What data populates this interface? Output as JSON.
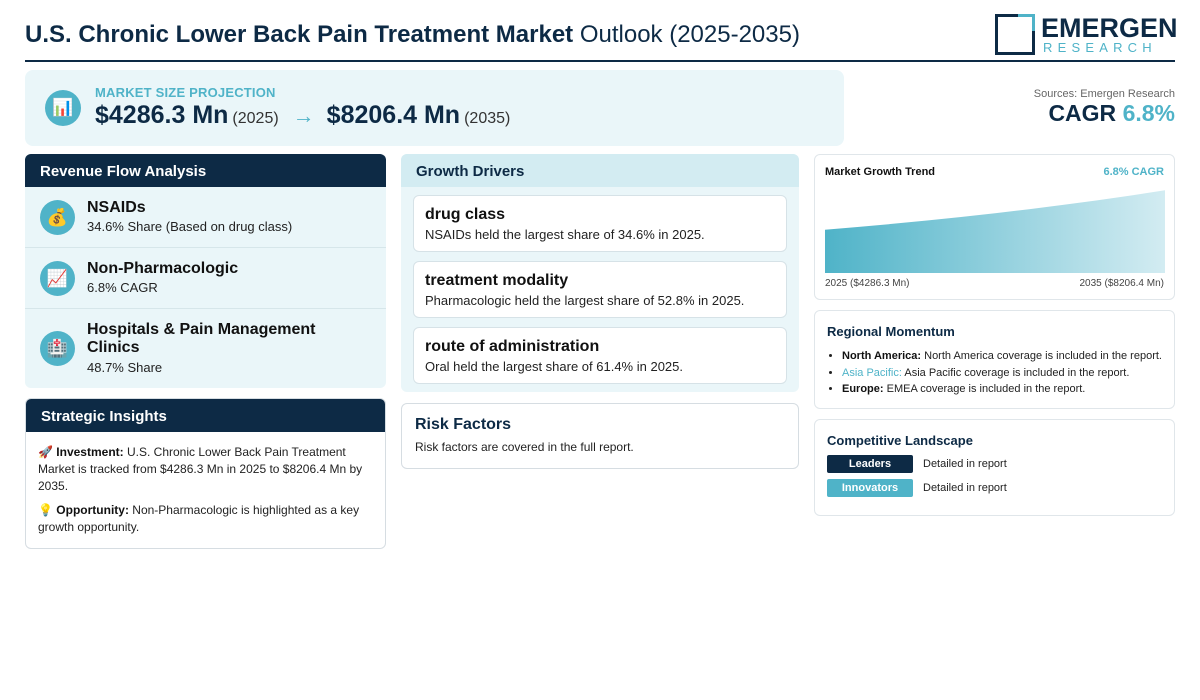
{
  "header": {
    "title_bold": "U.S. Chronic Lower Back Pain Treatment Market",
    "title_normal": "Outlook (2025-2035)",
    "logo_main": "EMERGEN",
    "logo_sub": "RESEARCH"
  },
  "market_size": {
    "label": "MARKET SIZE PROJECTION",
    "icon": "bar-chart-icon",
    "start_value": "$4286.3 Mn",
    "start_year": "(2025)",
    "arrow": "→",
    "end_value": "$8206.4 Mn",
    "end_year": "(2035)"
  },
  "sources": "Sources: Emergen Research",
  "cagr": {
    "label": "CAGR",
    "value": "6.8%"
  },
  "revenue_flow": {
    "title": "Revenue Flow Analysis",
    "items": [
      {
        "icon": "money-bag-icon",
        "glyph": "💰",
        "name": "NSAIDs",
        "sub": "34.6% Share (Based on drug class)"
      },
      {
        "icon": "chart-up-icon",
        "glyph": "📈",
        "name": "Non-Pharmacologic",
        "sub": "6.8% CAGR"
      },
      {
        "icon": "hospital-icon",
        "glyph": "🏥",
        "name": "Hospitals & Pain Management Clinics",
        "sub": "48.7% Share"
      }
    ]
  },
  "strategic": {
    "title": "Strategic Insights",
    "investment_label": "Investment:",
    "investment_text": "U.S. Chronic Lower Back Pain Treatment Market is tracked from $4286.3 Mn in 2025 to $8206.4 Mn by 2035.",
    "opportunity_label": "Opportunity:",
    "opportunity_text": "Non-Pharmacologic is highlighted as a key growth opportunity."
  },
  "drivers": {
    "title": "Growth Drivers",
    "items": [
      {
        "title": "drug class",
        "desc": "NSAIDs held the largest share of 34.6% in 2025."
      },
      {
        "title": "treatment modality",
        "desc": "Pharmacologic held the largest share of 52.8% in 2025."
      },
      {
        "title": "route of administration",
        "desc": "Oral held the largest share of 61.4% in 2025."
      }
    ]
  },
  "risk": {
    "title": "Risk Factors",
    "desc": "Risk factors are covered in the full report."
  },
  "trend": {
    "title": "Market Growth Trend",
    "cagr": "6.8% CAGR",
    "start_label": "2025 ($4286.3 Mn)",
    "end_label": "2035 ($8206.4 Mn)",
    "start_value": 4286.3,
    "end_value": 8206.4
  },
  "regional": {
    "title": "Regional Momentum",
    "items": [
      {
        "region": "North America:",
        "text": "North America coverage is included in the report."
      },
      {
        "region": "Asia Pacific:",
        "text": "Asia Pacific coverage is included in the report."
      },
      {
        "region": "Europe:",
        "text": "EMEA coverage is included in the report."
      }
    ]
  },
  "competitive": {
    "title": "Competitive Landscape",
    "rows": [
      {
        "badge": "Leaders",
        "text": "Detailed in report",
        "color": "#0d2a45"
      },
      {
        "badge": "Innovators",
        "text": "Detailed in report",
        "color": "#4fb3c8"
      }
    ]
  }
}
